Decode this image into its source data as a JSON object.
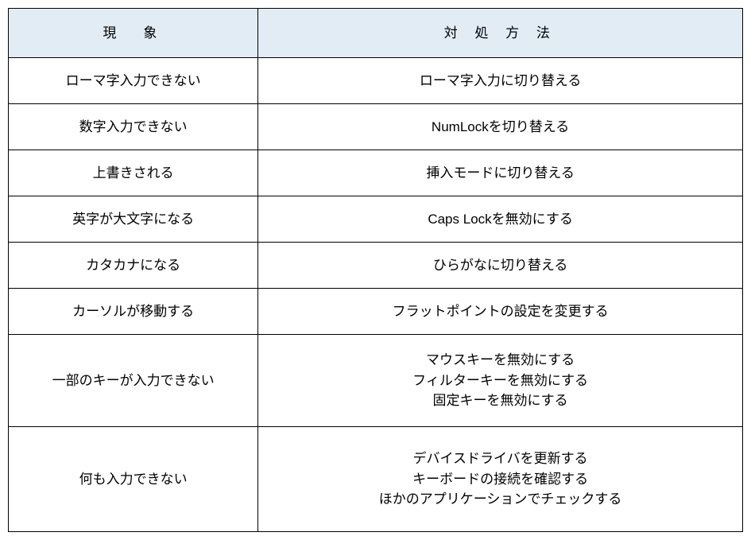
{
  "table": {
    "header_bg": "#e2ecf4",
    "border_color": "#000000",
    "columns": [
      {
        "label": "現　象",
        "width_pct": 34
      },
      {
        "label": "対 処 方 法",
        "width_pct": 66
      }
    ],
    "rows": [
      {
        "symptom": "ローマ字入力できない",
        "solutions": [
          "ローマ字入力に切り替える"
        ]
      },
      {
        "symptom": "数字入力できない",
        "solutions": [
          "NumLockを切り替える"
        ]
      },
      {
        "symptom": "上書きされる",
        "solutions": [
          "挿入モードに切り替える"
        ]
      },
      {
        "symptom": "英字が大文字になる",
        "solutions": [
          "Caps Lockを無効にする"
        ]
      },
      {
        "symptom": "カタカナになる",
        "solutions": [
          "ひらがなに切り替える"
        ]
      },
      {
        "symptom": "カーソルが移動する",
        "solutions": [
          "フラットポイントの設定を変更する"
        ]
      },
      {
        "symptom": "一部のキーが入力できない",
        "solutions": [
          "マウスキーを無効にする",
          "フィルターキーを無効にする",
          "固定キーを無効にする"
        ]
      },
      {
        "symptom": "何も入力できない",
        "solutions": [
          "デバイスドライバを更新する",
          "キーボードの接続を確認する",
          "ほかのアプリケーションでチェックする"
        ]
      }
    ],
    "font_size_pt": 13
  }
}
